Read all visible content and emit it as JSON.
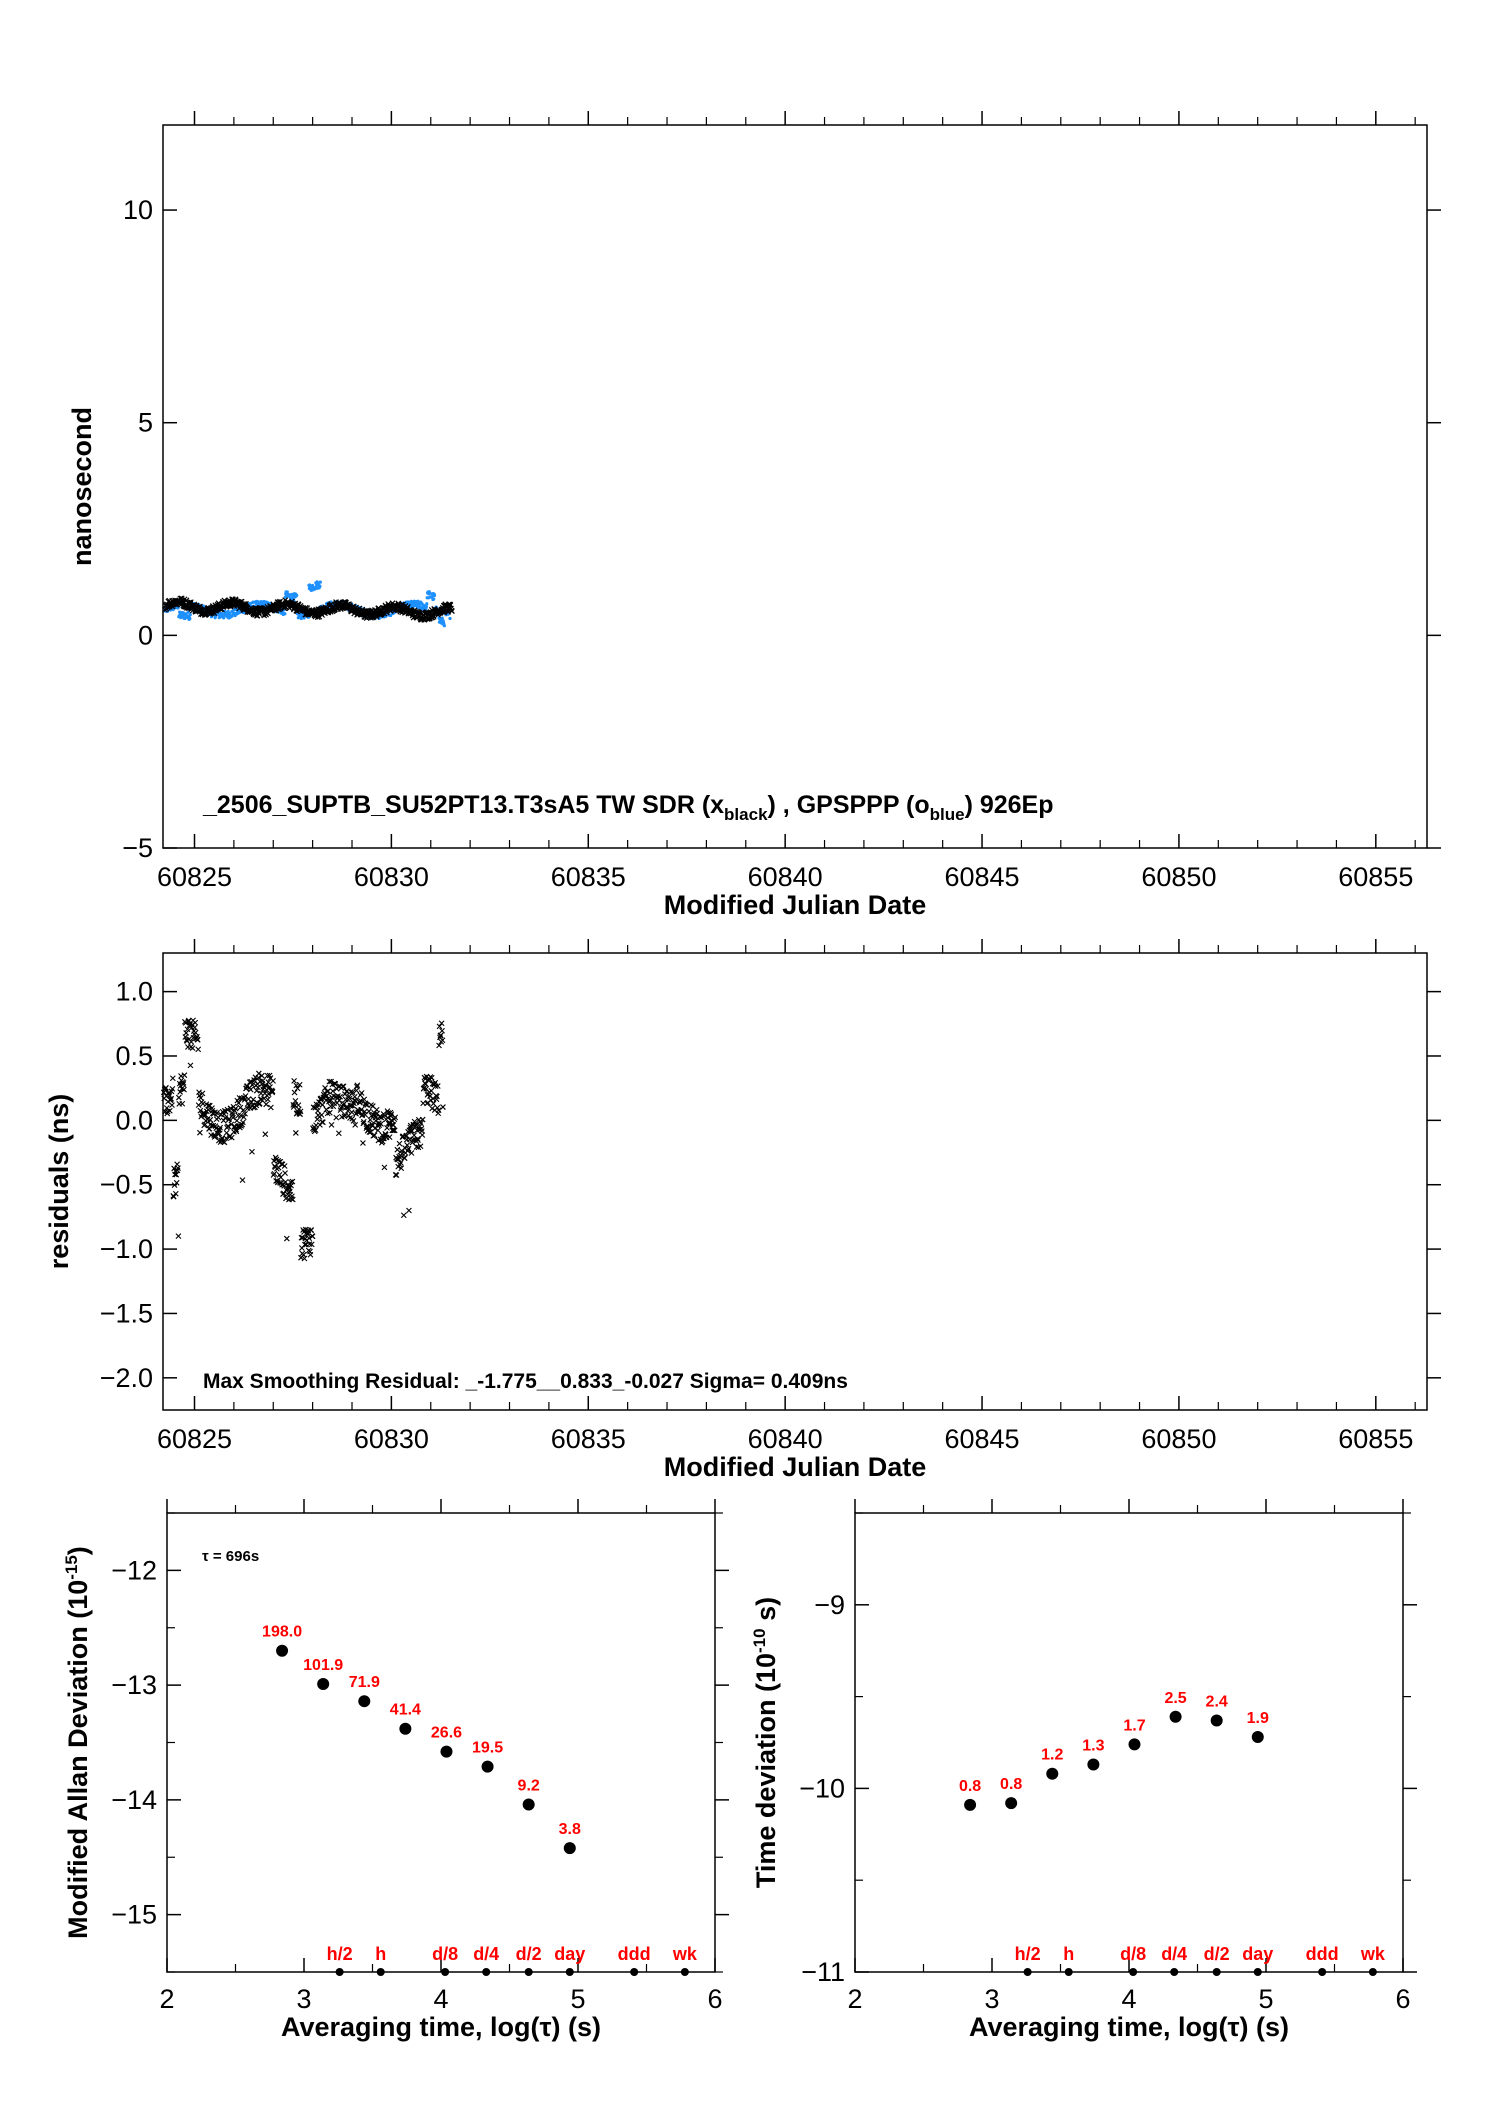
{
  "colors": {
    "tw": "#000000",
    "gps": "#1e90ff",
    "labels": "#ff0000",
    "axis": "#000000"
  },
  "panel1": {
    "ylabel": "nanosecond",
    "xlabel": "Modified Julian Date",
    "xlim": [
      60824.2,
      60856.3
    ],
    "ylim": [
      -5,
      12
    ],
    "xticks": [
      60825,
      60830,
      60835,
      60840,
      60845,
      60850,
      60855
    ],
    "yticks": [
      -5,
      0,
      5,
      10
    ],
    "caption_main": "_2506_SUPTB_SU52PT13.T3sA5     TW SDR (x",
    "caption_sub1": "black",
    "caption_mid": ") ,  GPSPPP (o",
    "caption_sub2": "blue",
    "caption_end": ")  926Ep"
  },
  "panel2": {
    "ylabel": "residuals (ns)",
    "xlabel": "Modified Julian Date",
    "xlim": [
      60824.2,
      60856.3
    ],
    "ylim": [
      -2.25,
      1.3
    ],
    "xticks": [
      60825,
      60830,
      60835,
      60840,
      60845,
      60850,
      60855
    ],
    "yticks": [
      -2.0,
      -1.5,
      -1.0,
      -0.5,
      0.0,
      0.5,
      1.0
    ],
    "annotation": "Max Smoothing Residual: _-1.775__0.833_-0.027  Sigma= 0.409ns"
  },
  "panel3": {
    "ylabel": "Modified Allan Deviation (10",
    "ylabel_sup": "-15",
    "ylabel_end": ")",
    "xlabel": "Averaging time, log(τ) (s)",
    "tau_note": "τ = 696s",
    "xlim": [
      2,
      6
    ],
    "ylim": [
      -15.5,
      -11.5
    ],
    "xticks": [
      2,
      3,
      4,
      5,
      6
    ],
    "yticks": [
      -15,
      -14,
      -13,
      -12
    ]
  },
  "panel4": {
    "ylabel": "Time deviation (10",
    "ylabel_sup": "-10",
    "ylabel_end": " s)",
    "xlabel": "Averaging time, log(τ) (s)",
    "xlim": [
      2,
      6
    ],
    "ylim": [
      -11,
      -8.5
    ],
    "xticks": [
      2,
      3,
      4,
      5,
      6
    ],
    "yticks": [
      -11,
      -10,
      -9
    ]
  },
  "chart_data": [
    {
      "type": "scatter",
      "name": "TW SDR / GPSPPP time series",
      "x_range": [
        60824.2,
        60831.5
      ],
      "series": [
        {
          "name": "TW SDR (x black)",
          "approx_level_ns": 0.6
        },
        {
          "name": "GPSPPP (o blue)",
          "approx_level_ns": 0.6
        }
      ]
    },
    {
      "type": "scatter",
      "name": "Residuals",
      "x_range": [
        60824.2,
        60831.5
      ],
      "ylim": [
        -2.25,
        1.3
      ]
    },
    {
      "type": "scatter",
      "name": "Modified Allan Deviation",
      "x": [
        2.84,
        3.14,
        3.44,
        3.74,
        4.04,
        4.34,
        4.64,
        4.94
      ],
      "y": [
        -12.7,
        -12.99,
        -13.14,
        -13.38,
        -13.58,
        -13.71,
        -14.04,
        -14.42
      ],
      "labels": [
        "198.0",
        "101.9",
        "71.9",
        "41.4",
        "26.6",
        "19.5",
        "9.2",
        "3.8"
      ],
      "markers": {
        "labels": [
          "h/2",
          "h",
          "d/8",
          "d/4",
          "d/2",
          "day",
          "ddd",
          "wk"
        ],
        "x": [
          3.26,
          3.56,
          4.03,
          4.33,
          4.64,
          4.94,
          5.41,
          5.78
        ]
      }
    },
    {
      "type": "scatter",
      "name": "Time deviation",
      "x": [
        2.84,
        3.14,
        3.44,
        3.74,
        4.04,
        4.34,
        4.64,
        4.94
      ],
      "y": [
        -10.09,
        -10.08,
        -9.92,
        -9.87,
        -9.76,
        -9.61,
        -9.63,
        -9.72
      ],
      "labels": [
        "0.8",
        "0.8",
        "1.2",
        "1.3",
        "1.7",
        "2.5",
        "2.4",
        "1.9"
      ],
      "markers": {
        "labels": [
          "h/2",
          "h",
          "d/8",
          "d/4",
          "d/2",
          "day",
          "ddd",
          "wk"
        ],
        "x": [
          3.26,
          3.56,
          4.03,
          4.33,
          4.64,
          4.94,
          5.41,
          5.78
        ]
      }
    }
  ]
}
